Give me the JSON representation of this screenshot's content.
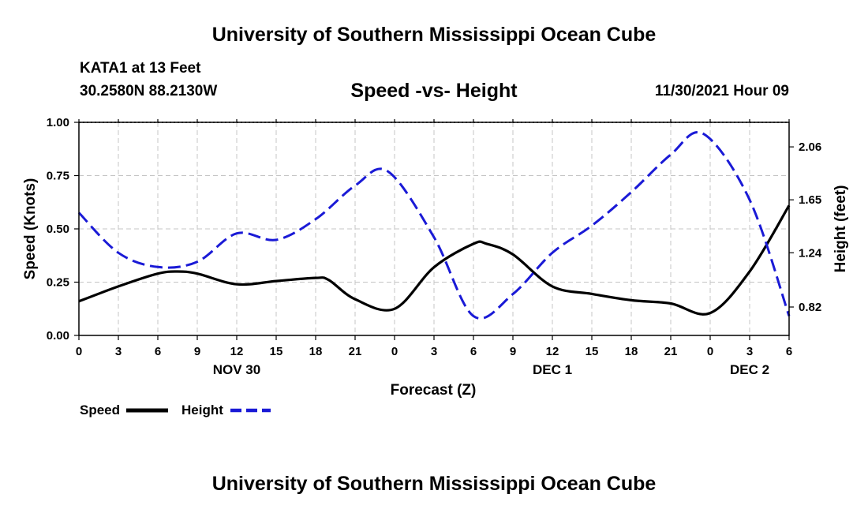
{
  "header": {
    "title": "University of Southern Mississippi Ocean Cube",
    "station": "KATA1 at 13 Feet",
    "coordinates": "30.2580N  88.2130W",
    "subtitle": "Speed -vs- Height",
    "datetime": "11/30/2021 Hour 09"
  },
  "footer": {
    "title": "University of Southern Mississippi Ocean Cube"
  },
  "legend": {
    "speed_label": "Speed",
    "height_label": "Height"
  },
  "chart_data": {
    "type": "line",
    "title": "Speed -vs- Height",
    "xlabel": "Forecast (Z)",
    "ylabel": "Speed (Knots)",
    "y2label": "Height (feet)",
    "xlim": [
      0,
      54
    ],
    "x_ticks": [
      0,
      3,
      6,
      9,
      12,
      15,
      18,
      21,
      24,
      27,
      30,
      33,
      36,
      39,
      42,
      45,
      48,
      51,
      54
    ],
    "x_tick_labels": [
      "0",
      "3",
      "6",
      "9",
      "12",
      "15",
      "18",
      "21",
      "0",
      "3",
      "6",
      "9",
      "12",
      "15",
      "18",
      "21",
      "0",
      "3",
      "6"
    ],
    "date_labels": [
      {
        "x": 12,
        "label": "NOV 30"
      },
      {
        "x": 36,
        "label": "DEC 1"
      },
      {
        "x": 51,
        "label": "DEC 2"
      }
    ],
    "ylim": [
      0,
      1
    ],
    "y_ticks": [
      0,
      0.25,
      0.5,
      0.75,
      1.0
    ],
    "y_tick_labels": [
      "0.00",
      "0.25",
      "0.50",
      "0.75",
      "1.00"
    ],
    "y2lim": [
      0.6,
      2.25
    ],
    "y2_ticks": [
      0.82,
      1.24,
      1.65,
      2.06
    ],
    "y2_tick_labels": [
      "0.82",
      "1.24",
      "1.65",
      "2.06"
    ],
    "grid": true,
    "series": [
      {
        "name": "Speed",
        "axis": "left",
        "color": "#000000",
        "style": "solid",
        "x": [
          0,
          3,
          6,
          7.5,
          9,
          12,
          15,
          18,
          19,
          21,
          24,
          27,
          30,
          31,
          33,
          36,
          39,
          42,
          45,
          48,
          51,
          54
        ],
        "values": [
          0.16,
          0.23,
          0.29,
          0.3,
          0.29,
          0.24,
          0.255,
          0.27,
          0.26,
          0.17,
          0.125,
          0.32,
          0.43,
          0.43,
          0.38,
          0.23,
          0.195,
          0.165,
          0.15,
          0.105,
          0.3,
          0.61
        ]
      },
      {
        "name": "Height",
        "axis": "right",
        "color": "#1a1ad6",
        "style": "dashed",
        "x": [
          0,
          3,
          6,
          9,
          12,
          15,
          18,
          21,
          23.5,
          27,
          30,
          33,
          36,
          39,
          42,
          45,
          47.5,
          51,
          54
        ],
        "values": [
          1.55,
          1.24,
          1.13,
          1.17,
          1.39,
          1.34,
          1.5,
          1.76,
          1.87,
          1.36,
          0.75,
          0.92,
          1.24,
          1.45,
          1.71,
          2.0,
          2.16,
          1.65,
          0.75
        ]
      }
    ]
  }
}
